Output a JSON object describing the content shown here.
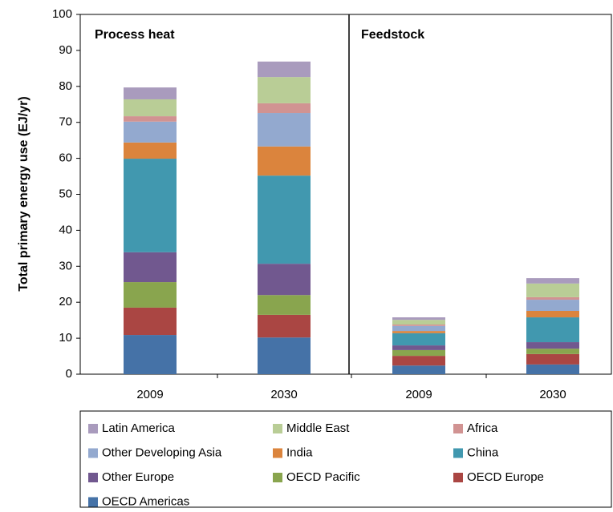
{
  "chart_data": {
    "type": "stacked_bar",
    "y_label": "Total primary energy use (EJ/yr)",
    "panels": [
      {
        "label": "Process heat"
      },
      {
        "label": "Feedstock"
      }
    ],
    "categories": [
      "2009",
      "2030",
      "2009",
      "2030"
    ],
    "ylim": [
      0,
      100
    ],
    "yticks": [
      0,
      10,
      20,
      30,
      40,
      50,
      60,
      70,
      80,
      90,
      100
    ],
    "series": [
      {
        "name": "OECD Americas",
        "color": "#4572a7",
        "values": [
          10.9,
          10.2,
          2.4,
          2.7
        ]
      },
      {
        "name": "OECD Europe",
        "color": "#aa4643",
        "values": [
          7.6,
          6.3,
          2.7,
          2.9
        ]
      },
      {
        "name": "OECD Pacific",
        "color": "#89a54e",
        "values": [
          7.1,
          5.5,
          1.6,
          1.5
        ]
      },
      {
        "name": "Other Europe",
        "color": "#71588f",
        "values": [
          8.3,
          8.7,
          1.3,
          1.8
        ]
      },
      {
        "name": "China",
        "color": "#4198af",
        "values": [
          26,
          24.5,
          3.4,
          6.9
        ]
      },
      {
        "name": "India",
        "color": "#db843d",
        "values": [
          4.5,
          8.1,
          0.6,
          1.8
        ]
      },
      {
        "name": "Other Developing Asia",
        "color": "#93a9cf",
        "values": [
          5.8,
          9.3,
          1.4,
          3.1
        ]
      },
      {
        "name": "Africa",
        "color": "#d19392",
        "values": [
          1.5,
          2.7,
          0.4,
          0.7
        ]
      },
      {
        "name": "Middle East",
        "color": "#b9cd96",
        "values": [
          4.7,
          7.3,
          1.3,
          3.8
        ]
      },
      {
        "name": "Latin America",
        "color": "#a99bbd",
        "values": [
          3.3,
          4.3,
          0.7,
          1.5
        ]
      }
    ]
  }
}
